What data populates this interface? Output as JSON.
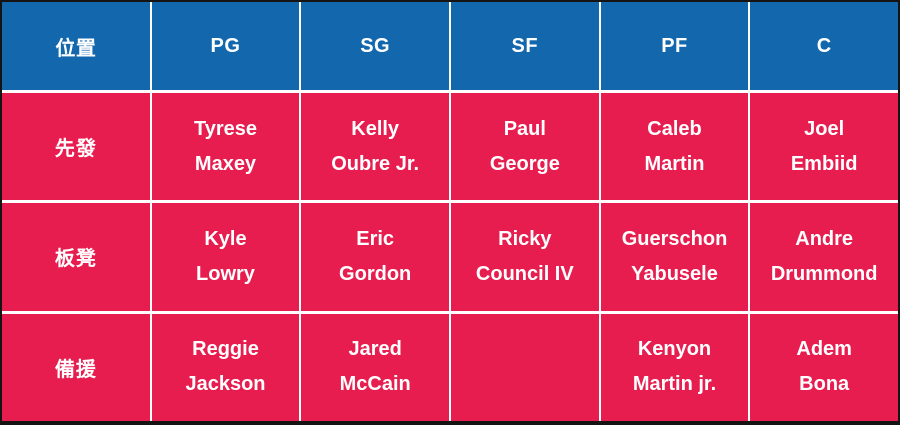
{
  "colors": {
    "header_bg": "#1267ad",
    "body_bg": "#e81d4f",
    "grid_line": "#ffffff",
    "frame": "#141414",
    "text": "#ffffff"
  },
  "header": {
    "cells": [
      "位置",
      "PG",
      "SG",
      "SF",
      "PF",
      "C"
    ]
  },
  "rows": [
    {
      "label": "先發",
      "players": [
        {
          "line1": "Tyrese",
          "line2": "Maxey"
        },
        {
          "line1": "Kelly",
          "line2": "Oubre Jr."
        },
        {
          "line1": "Paul",
          "line2": "George"
        },
        {
          "line1": "Caleb",
          "line2": "Martin"
        },
        {
          "line1": "Joel",
          "line2": "Embiid"
        }
      ]
    },
    {
      "label": "板凳",
      "players": [
        {
          "line1": "Kyle",
          "line2": "Lowry"
        },
        {
          "line1": "Eric",
          "line2": "Gordon"
        },
        {
          "line1": "Ricky",
          "line2": "Council IV"
        },
        {
          "line1": "Guerschon",
          "line2": "Yabusele"
        },
        {
          "line1": "Andre",
          "line2": "Drummond"
        }
      ]
    },
    {
      "label": "備援",
      "players": [
        {
          "line1": "Reggie",
          "line2": "Jackson"
        },
        {
          "line1": "Jared",
          "line2": "McCain"
        },
        {
          "line1": "",
          "line2": ""
        },
        {
          "line1": "Kenyon",
          "line2": "Martin jr."
        },
        {
          "line1": "Adem",
          "line2": "Bona"
        }
      ]
    }
  ],
  "chart_data": {
    "type": "table",
    "columns": [
      "位置",
      "PG",
      "SG",
      "SF",
      "PF",
      "C"
    ],
    "rows": [
      [
        "先發",
        "Tyrese Maxey",
        "Kelly Oubre Jr.",
        "Paul George",
        "Caleb Martin",
        "Joel Embiid"
      ],
      [
        "板凳",
        "Kyle Lowry",
        "Eric Gordon",
        "Ricky Council IV",
        "Guerschon Yabusele",
        "Andre Drummond"
      ],
      [
        "備援",
        "Reggie Jackson",
        "Jared McCain",
        "",
        "Kenyon Martin jr.",
        "Adem Bona"
      ]
    ],
    "title": "",
    "layout": "header row blue, body rows red, white grid lines, dark outer frame"
  }
}
